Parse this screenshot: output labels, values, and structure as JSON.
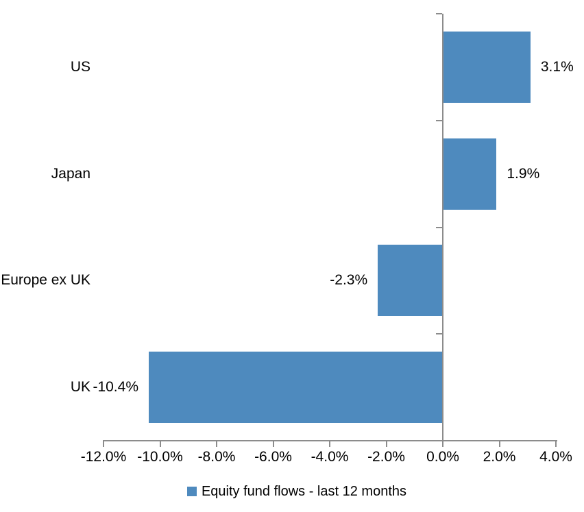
{
  "chart_data": {
    "type": "bar",
    "orientation": "horizontal",
    "title": "",
    "categories": [
      "US",
      "Japan",
      "Europe ex UK",
      "UK"
    ],
    "values": [
      3.1,
      1.9,
      -2.3,
      -10.4
    ],
    "data_labels": [
      "3.1%",
      "1.9%",
      "-2.3%",
      "-10.4%"
    ],
    "series_name": "Equity fund flows - last 12 months",
    "xlabel": "",
    "ylabel": "",
    "xlim": [
      -12,
      4
    ],
    "x_tick_values": [
      -12,
      -10,
      -8,
      -6,
      -4,
      -2,
      0,
      2,
      4
    ],
    "x_tick_labels": [
      "-12.0%",
      "-10.0%",
      "-8.0%",
      "-6.0%",
      "-4.0%",
      "-2.0%",
      "0.0%",
      "2.0%",
      "4.0%"
    ],
    "grid": false,
    "legend_position": "bottom",
    "colors": {
      "bar": "#4E8ABE",
      "axis": "#8C8C8C",
      "text": "#000000",
      "background": "#FFFFFF"
    }
  }
}
